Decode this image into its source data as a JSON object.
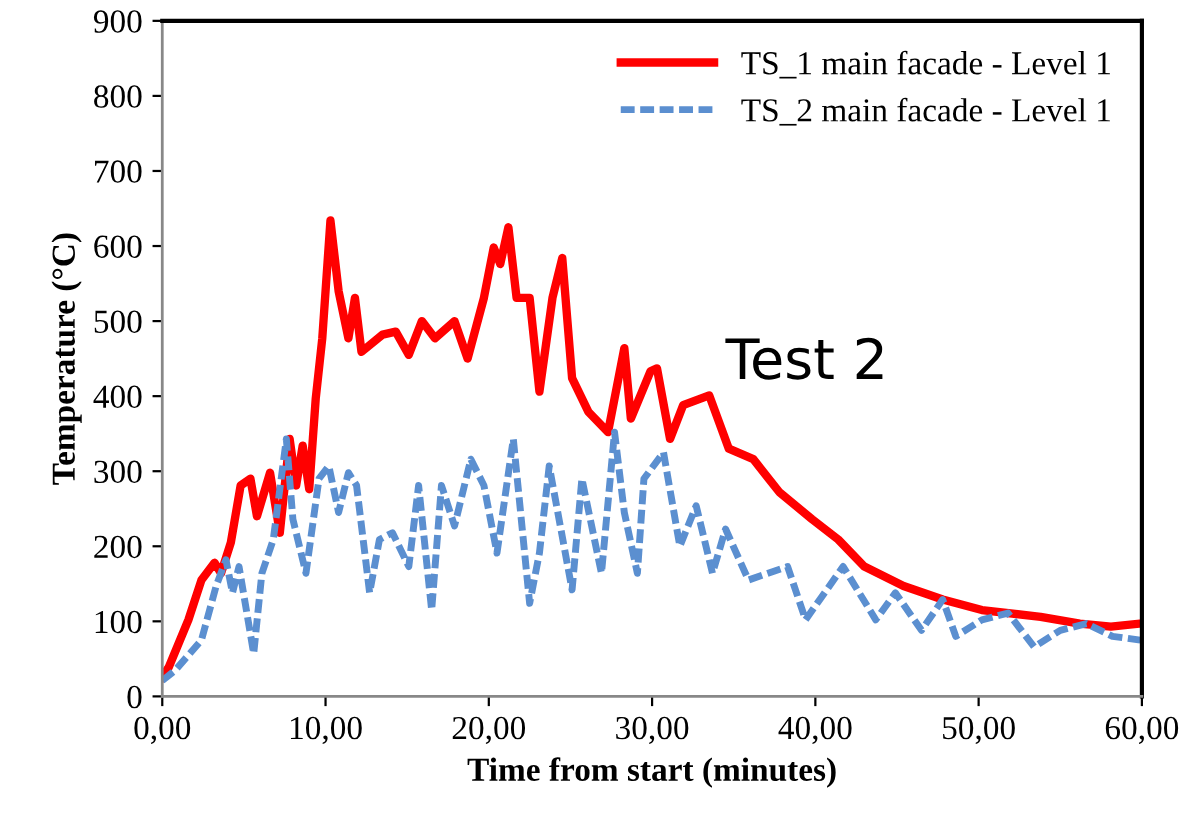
{
  "chart_data": {
    "type": "line",
    "xlabel": "Time from start (minutes)",
    "ylabel": "Temperature (°C)",
    "xlim": [
      0,
      60
    ],
    "ylim": [
      0,
      900
    ],
    "xticks": [
      {
        "value": 0,
        "label": "0,00"
      },
      {
        "value": 10,
        "label": "10,00"
      },
      {
        "value": 20,
        "label": "20,00"
      },
      {
        "value": 30,
        "label": "30,00"
      },
      {
        "value": 40,
        "label": "40,00"
      },
      {
        "value": 50,
        "label": "50,00"
      },
      {
        "value": 60,
        "label": "60,00"
      }
    ],
    "yticks": [
      0,
      100,
      200,
      300,
      400,
      500,
      600,
      700,
      800,
      900
    ],
    "grid": false,
    "legend": "top right",
    "marker": "none",
    "annotations": [
      "Test 2"
    ],
    "series": [
      {
        "name": "TS_1 main facade - Level 1",
        "color": "#ff0000",
        "line_style": "solid",
        "x": [
          0,
          0.4,
          1.6,
          2.4,
          3.2,
          3.6,
          4.2,
          4.8,
          5.4,
          5.8,
          6.6,
          7.2,
          7.8,
          8.2,
          8.6,
          9.0,
          9.4,
          9.8,
          10.3,
          10.8,
          11.4,
          11.8,
          12.2,
          13.5,
          14.3,
          15.1,
          15.9,
          16.7,
          17.9,
          18.7,
          19.7,
          20.3,
          20.7,
          21.2,
          21.7,
          22.5,
          23.1,
          23.9,
          24.5,
          25.1,
          26.1,
          27.3,
          28.3,
          28.7,
          29.9,
          30.3,
          31.1,
          31.9,
          33.5,
          34.7,
          36.2,
          37.8,
          39.8,
          41.4,
          43.0,
          45.4,
          47.8,
          50.2,
          53.8,
          56.2,
          58.1,
          59.9
        ],
        "values": [
          26,
          39,
          102,
          155,
          178,
          164,
          205,
          281,
          290,
          240,
          298,
          218,
          343,
          281,
          334,
          276,
          397,
          477,
          634,
          540,
          477,
          531,
          459,
          482,
          486,
          455,
          500,
          477,
          500,
          450,
          531,
          598,
          576,
          625,
          531,
          531,
          406,
          531,
          584,
          424,
          379,
          352,
          464,
          370,
          433,
          437,
          343,
          388,
          401,
          330,
          316,
          272,
          236,
          209,
          173,
          147,
          129,
          115,
          106,
          97,
          93,
          97
        ]
      },
      {
        "name": "TS_2 main facade - Level 1",
        "color": "#5b8fd0",
        "line_style": "dashed",
        "x": [
          0,
          0.8,
          2.4,
          3.3,
          3.9,
          4.3,
          4.7,
          5.6,
          6.1,
          6.8,
          7.6,
          8.0,
          8.8,
          9.6,
          10.2,
          10.8,
          11.4,
          11.9,
          12.7,
          13.3,
          14.1,
          15.1,
          15.7,
          16.5,
          17.1,
          17.9,
          18.9,
          19.7,
          20.5,
          21.5,
          22.5,
          23.1,
          23.7,
          25.1,
          25.7,
          26.9,
          27.7,
          28.3,
          29.1,
          29.5,
          30.7,
          31.7,
          32.7,
          33.7,
          34.5,
          35.9,
          38.3,
          39.4,
          41.7,
          43.7,
          44.9,
          46.5,
          47.8,
          48.6,
          50.2,
          51.8,
          53.4,
          55.0,
          56.6,
          58.2,
          59.9
        ],
        "values": [
          21,
          35,
          75,
          147,
          182,
          138,
          173,
          57,
          164,
          209,
          343,
          236,
          164,
          290,
          307,
          245,
          298,
          281,
          138,
          209,
          218,
          173,
          281,
          115,
          281,
          227,
          316,
          281,
          191,
          343,
          124,
          191,
          307,
          142,
          290,
          164,
          352,
          245,
          164,
          290,
          325,
          200,
          254,
          164,
          223,
          155,
          173,
          102,
          173,
          102,
          138,
          88,
          129,
          80,
          102,
          111,
          66,
          88,
          97,
          80,
          75
        ]
      }
    ]
  }
}
